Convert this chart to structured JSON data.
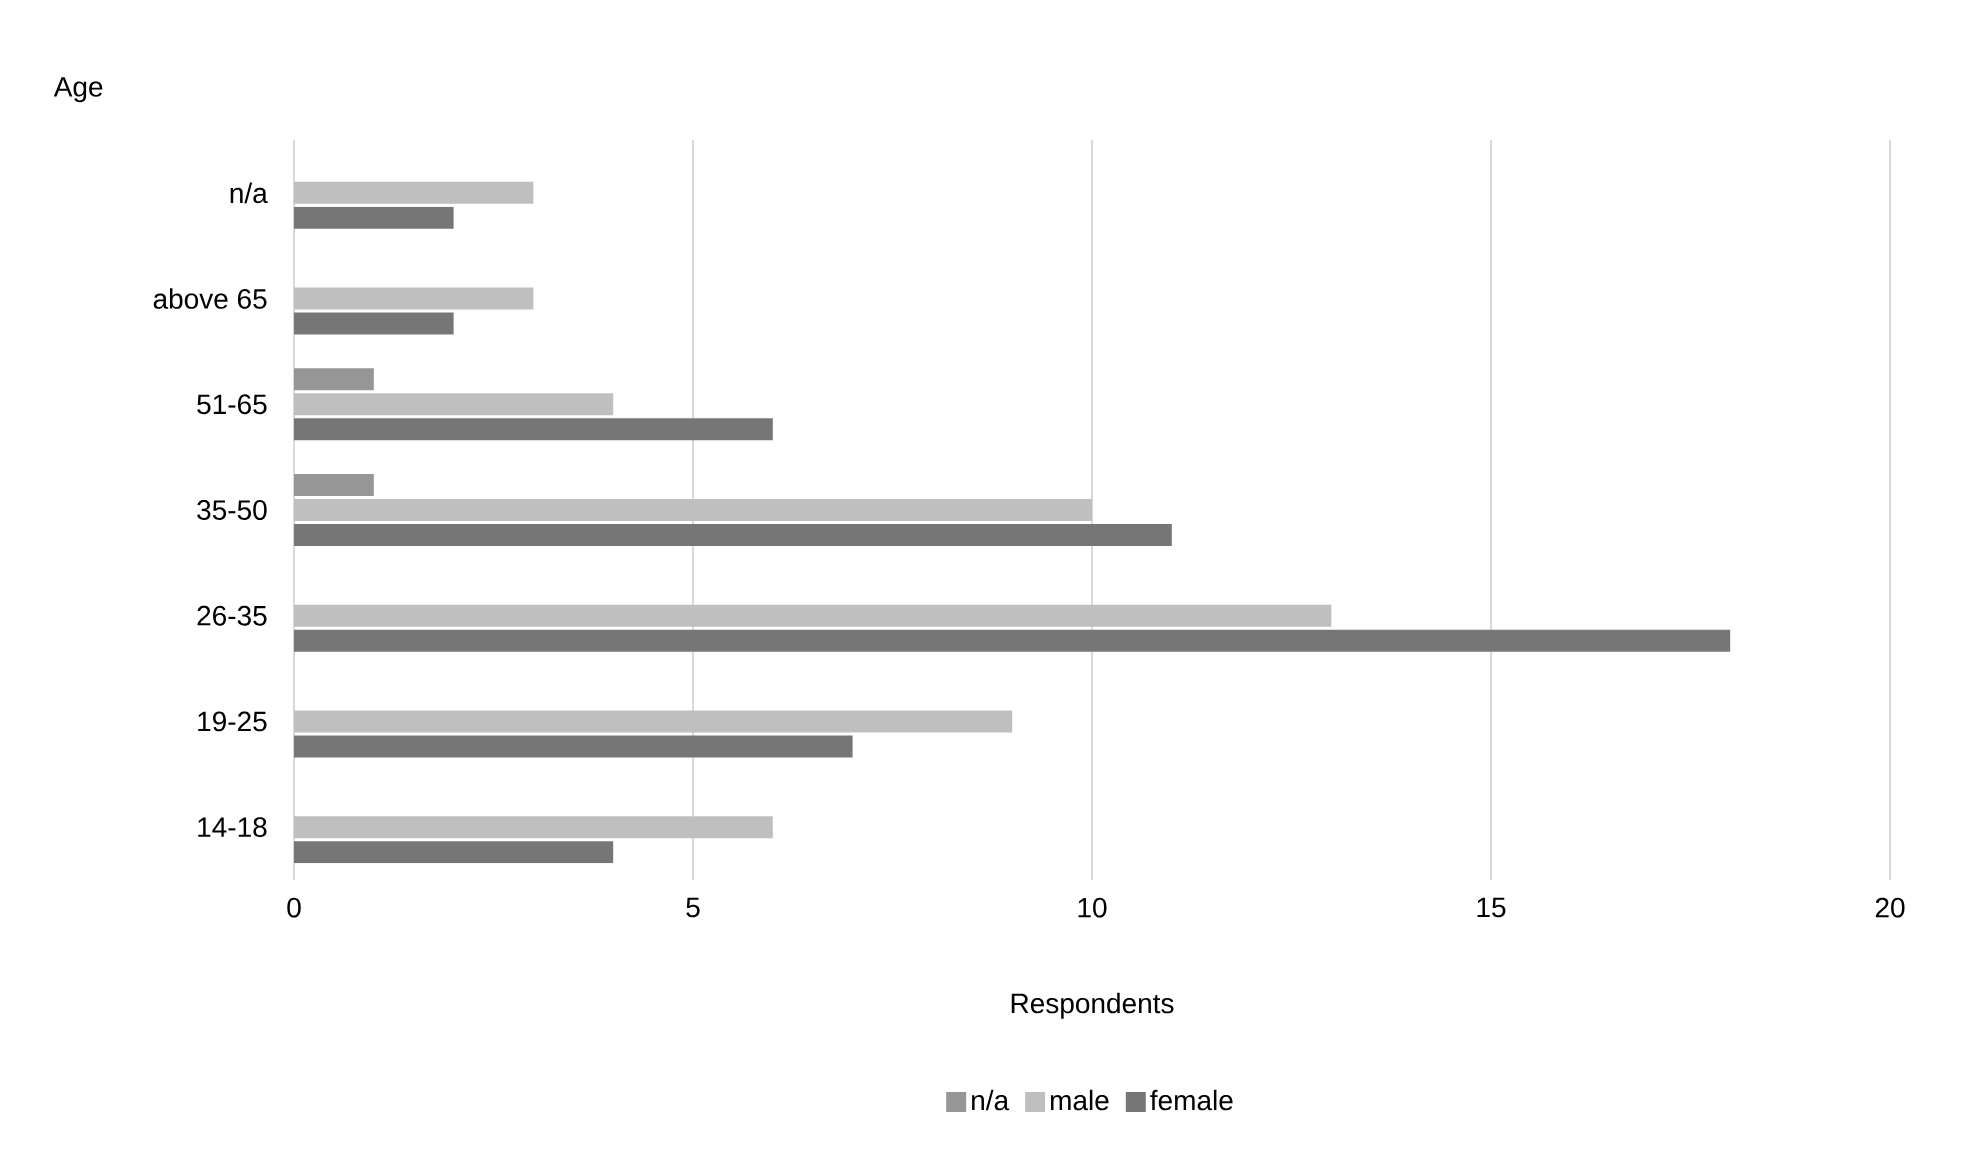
{
  "chart_data": {
    "type": "bar",
    "orientation": "horizontal",
    "ylabel": "Age",
    "xlabel": "Respondents",
    "categories": [
      "n/a",
      "above 65",
      "51-65",
      "35-50",
      "26-35",
      "19-25",
      "14-18"
    ],
    "series": [
      {
        "name": "n/a",
        "color": "#969696",
        "values": [
          0,
          0,
          1,
          1,
          0,
          0,
          0
        ]
      },
      {
        "name": "male",
        "color": "#bfbfbf",
        "values": [
          3,
          3,
          4,
          10,
          13,
          9,
          6
        ]
      },
      {
        "name": "female",
        "color": "#767676",
        "values": [
          2,
          2,
          6,
          11,
          18,
          7,
          4
        ]
      }
    ],
    "xlim": [
      0,
      20
    ],
    "xticks": [
      0,
      5,
      10,
      15,
      20
    ],
    "grid": "x",
    "legend": "bottom"
  }
}
